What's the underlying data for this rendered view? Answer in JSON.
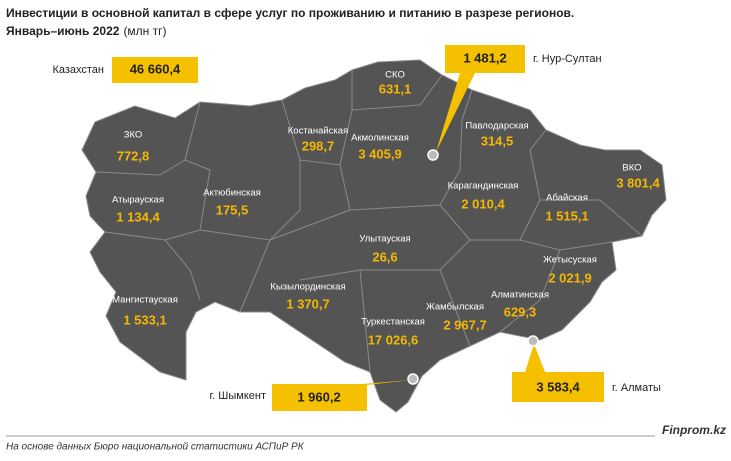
{
  "header": {
    "title": "Инвестиции в основной капитал в сфере услуг по проживанию и питанию в разрезе регионов.",
    "subtitle": "Январь–июнь 2022",
    "unit": "(млн тг)"
  },
  "total": {
    "label": "Казахстан",
    "value": "46 660,4"
  },
  "cities": [
    {
      "label": "г. Нур-Султан",
      "value": "1 481,2"
    },
    {
      "label": "г. Шымкент",
      "value": "1 960,2"
    },
    {
      "label": "г. Алматы",
      "value": "3 583,4"
    }
  ],
  "regions": [
    {
      "name": "СКО",
      "value": "631,1"
    },
    {
      "name": "Костанайская",
      "value": "298,7"
    },
    {
      "name": "Акмолинская",
      "value": "3 405,9"
    },
    {
      "name": "Павлодарская",
      "value": "314,5"
    },
    {
      "name": "ЗКО",
      "value": "772,8"
    },
    {
      "name": "ВКО",
      "value": "3 801,4"
    },
    {
      "name": "Атырауская",
      "value": "1 134,4"
    },
    {
      "name": "Актюбинская",
      "value": "175,5"
    },
    {
      "name": "Карагандинская",
      "value": "2 010,4"
    },
    {
      "name": "Абайская",
      "value": "1 515,1"
    },
    {
      "name": "Улытауская",
      "value": "26,6"
    },
    {
      "name": "Жетысуская",
      "value": "2 021,9"
    },
    {
      "name": "Кызылординская",
      "value": "1 370,7"
    },
    {
      "name": "Мангистауская",
      "value": "1 533,1"
    },
    {
      "name": "Алматинская",
      "value": "629,3"
    },
    {
      "name": "Жамбылская",
      "value": "2 967,7"
    },
    {
      "name": "Туркестанская",
      "value": "17 026,6"
    }
  ],
  "footer": {
    "source": "На основе данных Бюро национальной статистики АСПиР РК",
    "brand": "Finprom.kz"
  }
}
